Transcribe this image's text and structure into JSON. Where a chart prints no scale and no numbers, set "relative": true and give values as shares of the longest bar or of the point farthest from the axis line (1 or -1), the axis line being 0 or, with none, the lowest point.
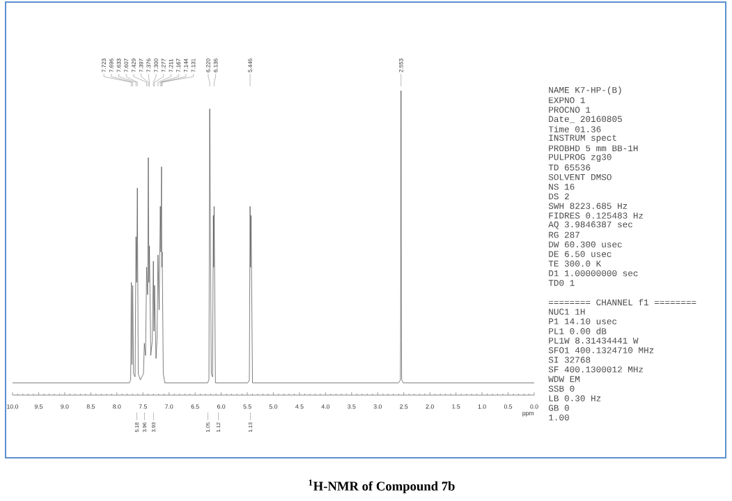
{
  "chart_data": [
    {
      "type": "line",
      "relative": true,
      "color": "#505050",
      "title": "$^{1}$H-NMR of Compound 7b",
      "xlabel": "ppm",
      "xlim": [
        10,
        0
      ],
      "xticks": [
        {
          "value": 10,
          "label": "10.0"
        },
        9.5,
        {
          "value": 9,
          "label": "9.0"
        },
        8.5,
        {
          "value": 8,
          "label": "8.0"
        },
        7.5,
        {
          "value": 7,
          "label": "7.0"
        },
        6.5,
        {
          "value": 6,
          "label": "6.0"
        },
        5.5,
        {
          "value": 5,
          "label": "5.0"
        },
        4.5,
        {
          "value": 4,
          "label": "4.0"
        },
        3.5,
        {
          "value": 3,
          "label": "3.0"
        },
        2.5,
        {
          "value": 2,
          "label": "2.0"
        },
        1.5,
        {
          "value": 1,
          "label": "1.0"
        },
        0.5,
        {
          "value": 0,
          "label": "0.0"
        }
      ],
      "x": [
        10,
        7.76,
        7.735,
        7.723,
        7.71,
        7.696,
        7.68,
        7.65,
        7.633,
        7.62,
        7.607,
        7.59,
        7.55,
        7.49,
        7.473,
        7.45,
        7.429,
        7.41,
        7.397,
        7.386,
        7.376,
        7.35,
        7.32,
        7.3,
        7.288,
        7.277,
        7.25,
        7.23,
        7.211,
        7.19,
        7.167,
        7.155,
        7.144,
        7.138,
        7.131,
        7.11,
        7.08,
        6.26,
        6.235,
        6.22,
        6.19,
        6.165,
        6.15,
        6.143,
        6.136,
        6.11,
        5.49,
        5.46,
        5.446,
        5.437,
        5.427,
        5.4,
        2.6,
        2.565,
        2.561,
        2.553,
        2.545,
        2.541,
        2.51,
        0
      ],
      "values": [
        0.04,
        0.04,
        0.05,
        0.37,
        0.1,
        0.36,
        0.07,
        0.06,
        0.52,
        0.37,
        0.68,
        0.07,
        0.05,
        0.07,
        0.17,
        0.13,
        0.42,
        0.33,
        0.78,
        0.37,
        0.49,
        0.13,
        0.18,
        0.44,
        0.21,
        0.36,
        0.12,
        0.18,
        0.46,
        0.28,
        0.62,
        0.47,
        0.75,
        0.42,
        0.47,
        0.07,
        0.04,
        0.04,
        0.05,
        0.94,
        0.07,
        0.06,
        0.59,
        0.42,
        0.62,
        0.04,
        0.04,
        0.05,
        0.62,
        0.42,
        0.59,
        0.04,
        0.04,
        0.05,
        0.18,
        1,
        0.18,
        0.05,
        0.04,
        0.04
      ],
      "annotations": [
        {
          "text": "7.723",
          "x": 7.723
        },
        {
          "text": "7.696",
          "x": 7.696
        },
        {
          "text": "7.633",
          "x": 7.633
        },
        {
          "text": "7.607",
          "x": 7.607
        },
        {
          "text": "7.429",
          "x": 7.429
        },
        {
          "text": "7.397",
          "x": 7.397
        },
        {
          "text": "7.376",
          "x": 7.376
        },
        {
          "text": "7.300",
          "x": 7.3
        },
        {
          "text": "7.277",
          "x": 7.277
        },
        {
          "text": "7.211",
          "x": 7.211
        },
        {
          "text": "7.167",
          "x": 7.167
        },
        {
          "text": "7.144",
          "x": 7.144
        },
        {
          "text": "7.131",
          "x": 7.131
        },
        {
          "text": "6.220",
          "x": 6.22
        },
        {
          "text": "6.136",
          "x": 6.136
        },
        {
          "text": "5.446",
          "x": 5.446
        },
        {
          "text": "2.553",
          "x": 2.553
        },
        "5.18",
        "3.96",
        "3.93",
        "1.05",
        "1.12",
        "1.13"
      ]
    },
    {
      "type": "other",
      "annotations": [
        "NAME K7-HP-(B)",
        "EXPNO 1",
        "PROCNO 1",
        "Date_ 20160805",
        "Time 01.36",
        "INSTRUM spect",
        "PROBHD 5 mm BB-1H",
        "PULPROG zg30",
        "TD 65536",
        "SOLVENT DMSO",
        "NS 16",
        "DS 2",
        "SWH 8223.685 Hz",
        "FIDRES 0.125483 Hz",
        "AQ 3.9846387 sec",
        "RG 287",
        "DW 60.300 usec",
        "DE 6.50 usec",
        "TE 300.0 K",
        "D1 1.00000000 sec",
        "TD0 1",
        "======== CHANNEL f1 ========",
        "NUC1 1H",
        "P1 14.10 usec",
        "PL1 0.00 dB",
        "PL1W 8.31434441 W",
        "SFO1 400.1324710 MHz",
        "SI 32768",
        "SF 400.1300012 MHz",
        "WDW EM",
        "SSB 0",
        "LB 0.30 Hz",
        "GB 0",
        "1.00"
      ]
    }
  ]
}
